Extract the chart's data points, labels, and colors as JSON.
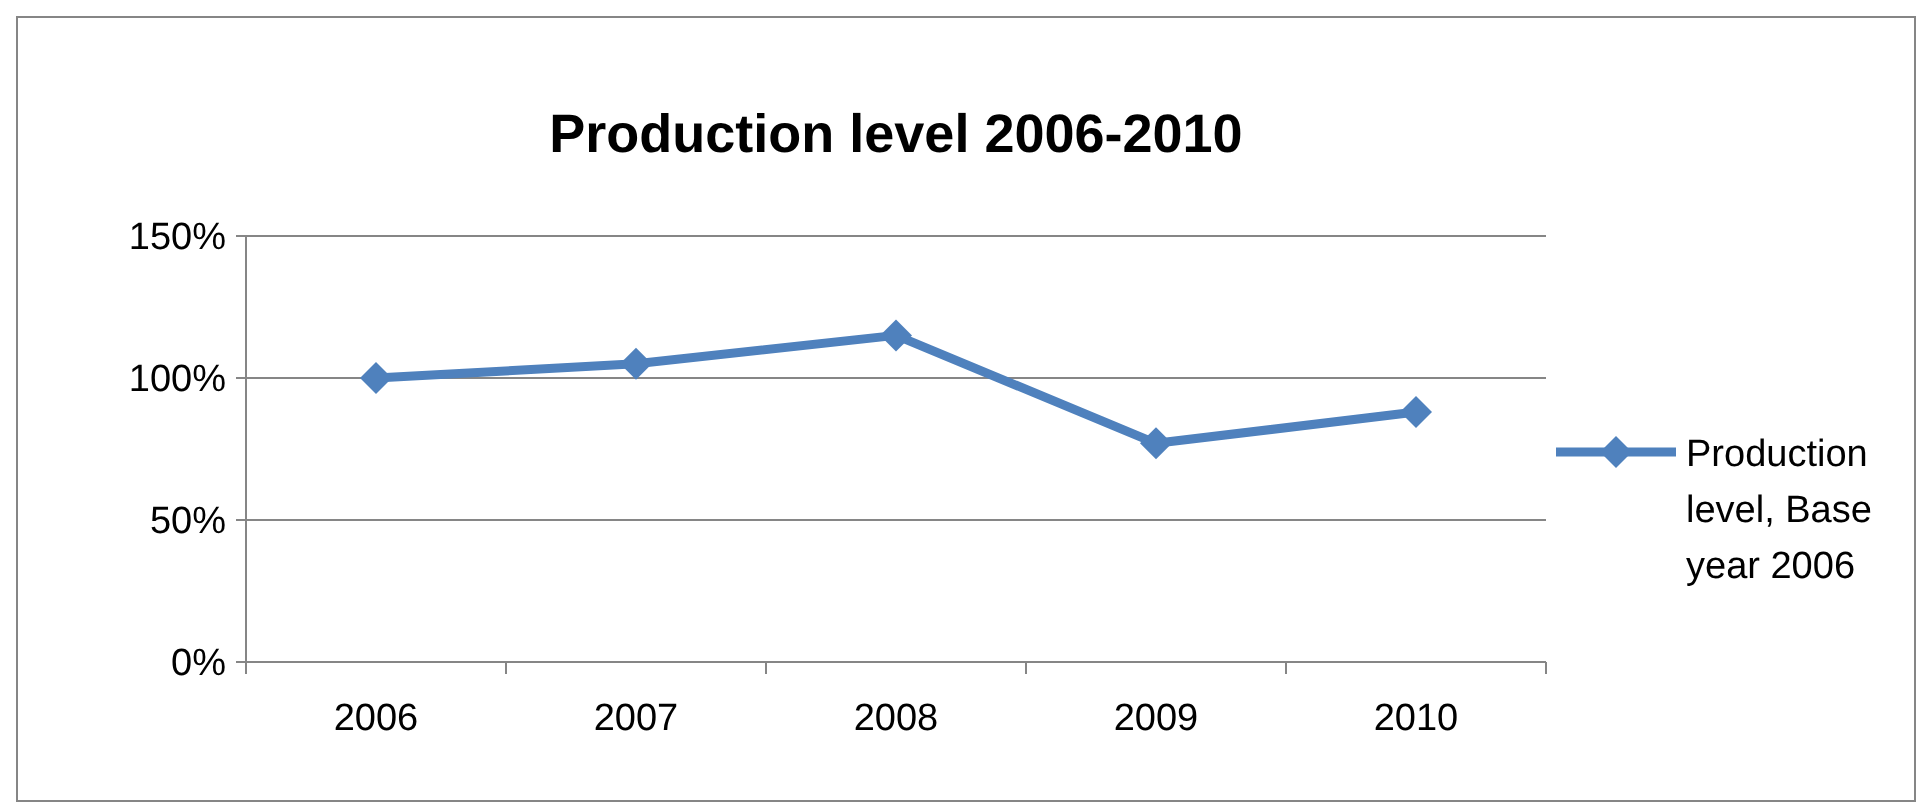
{
  "chart_data": {
    "type": "line",
    "title": "Production level 2006-2010",
    "categories": [
      "2006",
      "2007",
      "2008",
      "2009",
      "2010"
    ],
    "series": [
      {
        "name": "Production level, Base year 2006",
        "color": "#4f81bd",
        "values": [
          100,
          105,
          115,
          77,
          88
        ]
      }
    ],
    "ylim": [
      0,
      150
    ],
    "yticks": [
      {
        "value": 0,
        "label": "0%"
      },
      {
        "value": 50,
        "label": "50%"
      },
      {
        "value": 100,
        "label": "100%"
      },
      {
        "value": 150,
        "label": "150%"
      }
    ],
    "grid": "y",
    "legend": "right",
    "marker": "diamond",
    "line_style": "solid"
  }
}
